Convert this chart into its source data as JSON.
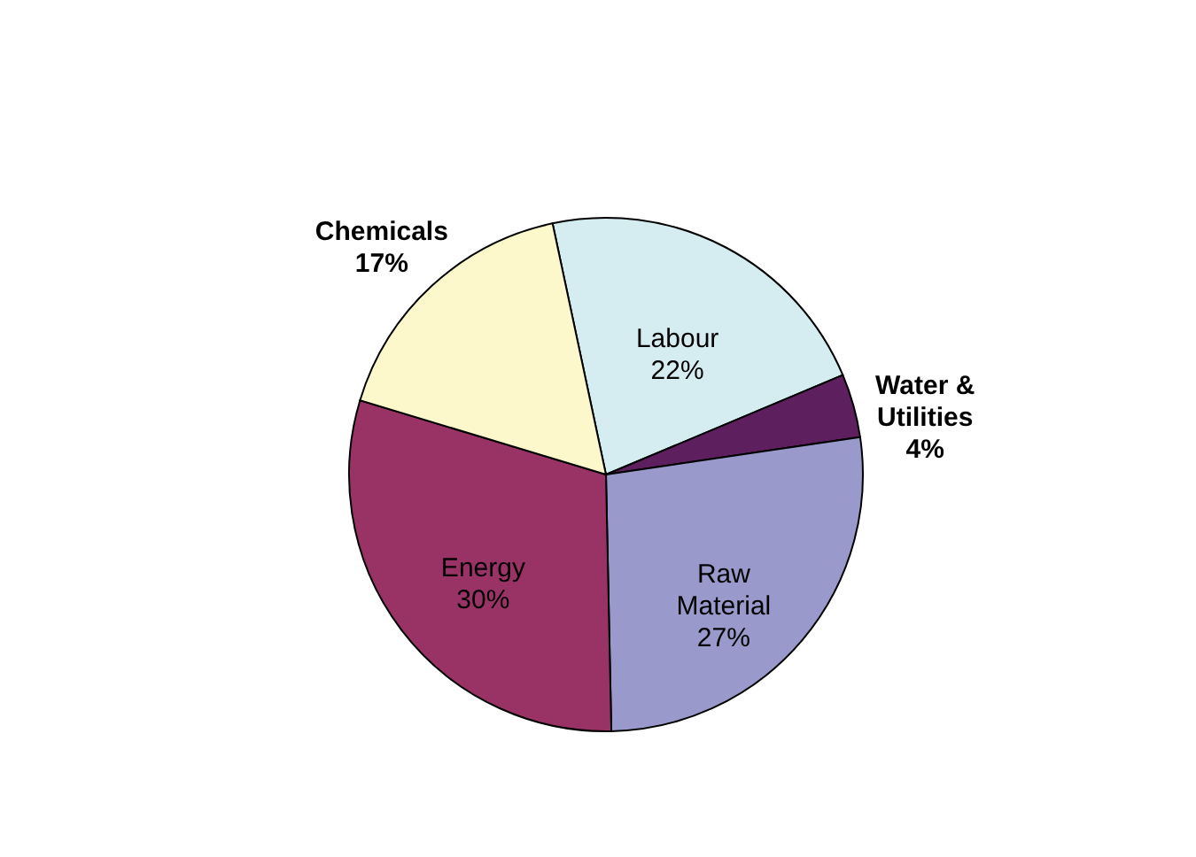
{
  "chart_data": {
    "type": "pie",
    "categories": [
      "Labour",
      "Water & Utilities",
      "Raw Material",
      "Energy",
      "Chemicals"
    ],
    "values": [
      22,
      4,
      27,
      30,
      17
    ],
    "value_labels": [
      "22%",
      "4%",
      "27%",
      "30%",
      "17%"
    ],
    "colors": [
      "#d5edf1",
      "#5e1f5e",
      "#9999cc",
      "#993366",
      "#fcf8cc"
    ]
  }
}
